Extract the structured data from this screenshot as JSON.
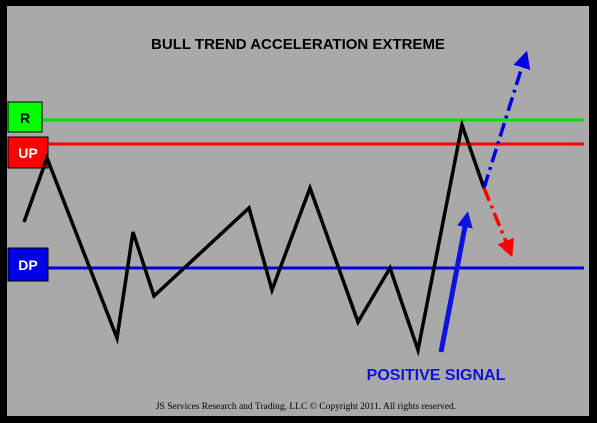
{
  "title": "BULL TREND ACCELERATION EXTREME",
  "levels": {
    "r": {
      "label": "R",
      "color": "#00e000"
    },
    "up": {
      "label": "UP",
      "color": "#ff0000"
    },
    "dp": {
      "label": "DP",
      "color": "#0000e8"
    }
  },
  "signal": {
    "label": "POSITIVE SIGNAL",
    "color": "#1010e0"
  },
  "projections": {
    "bull_color": "#0000e8",
    "bear_color": "#ff0000"
  },
  "copyright": "JS Services Research  and Trading, LLC © Copyright 2011. All rights reserved.",
  "colors": {
    "background": "#a9a9a9",
    "frame": "#000000",
    "price_line": "#000000"
  }
}
